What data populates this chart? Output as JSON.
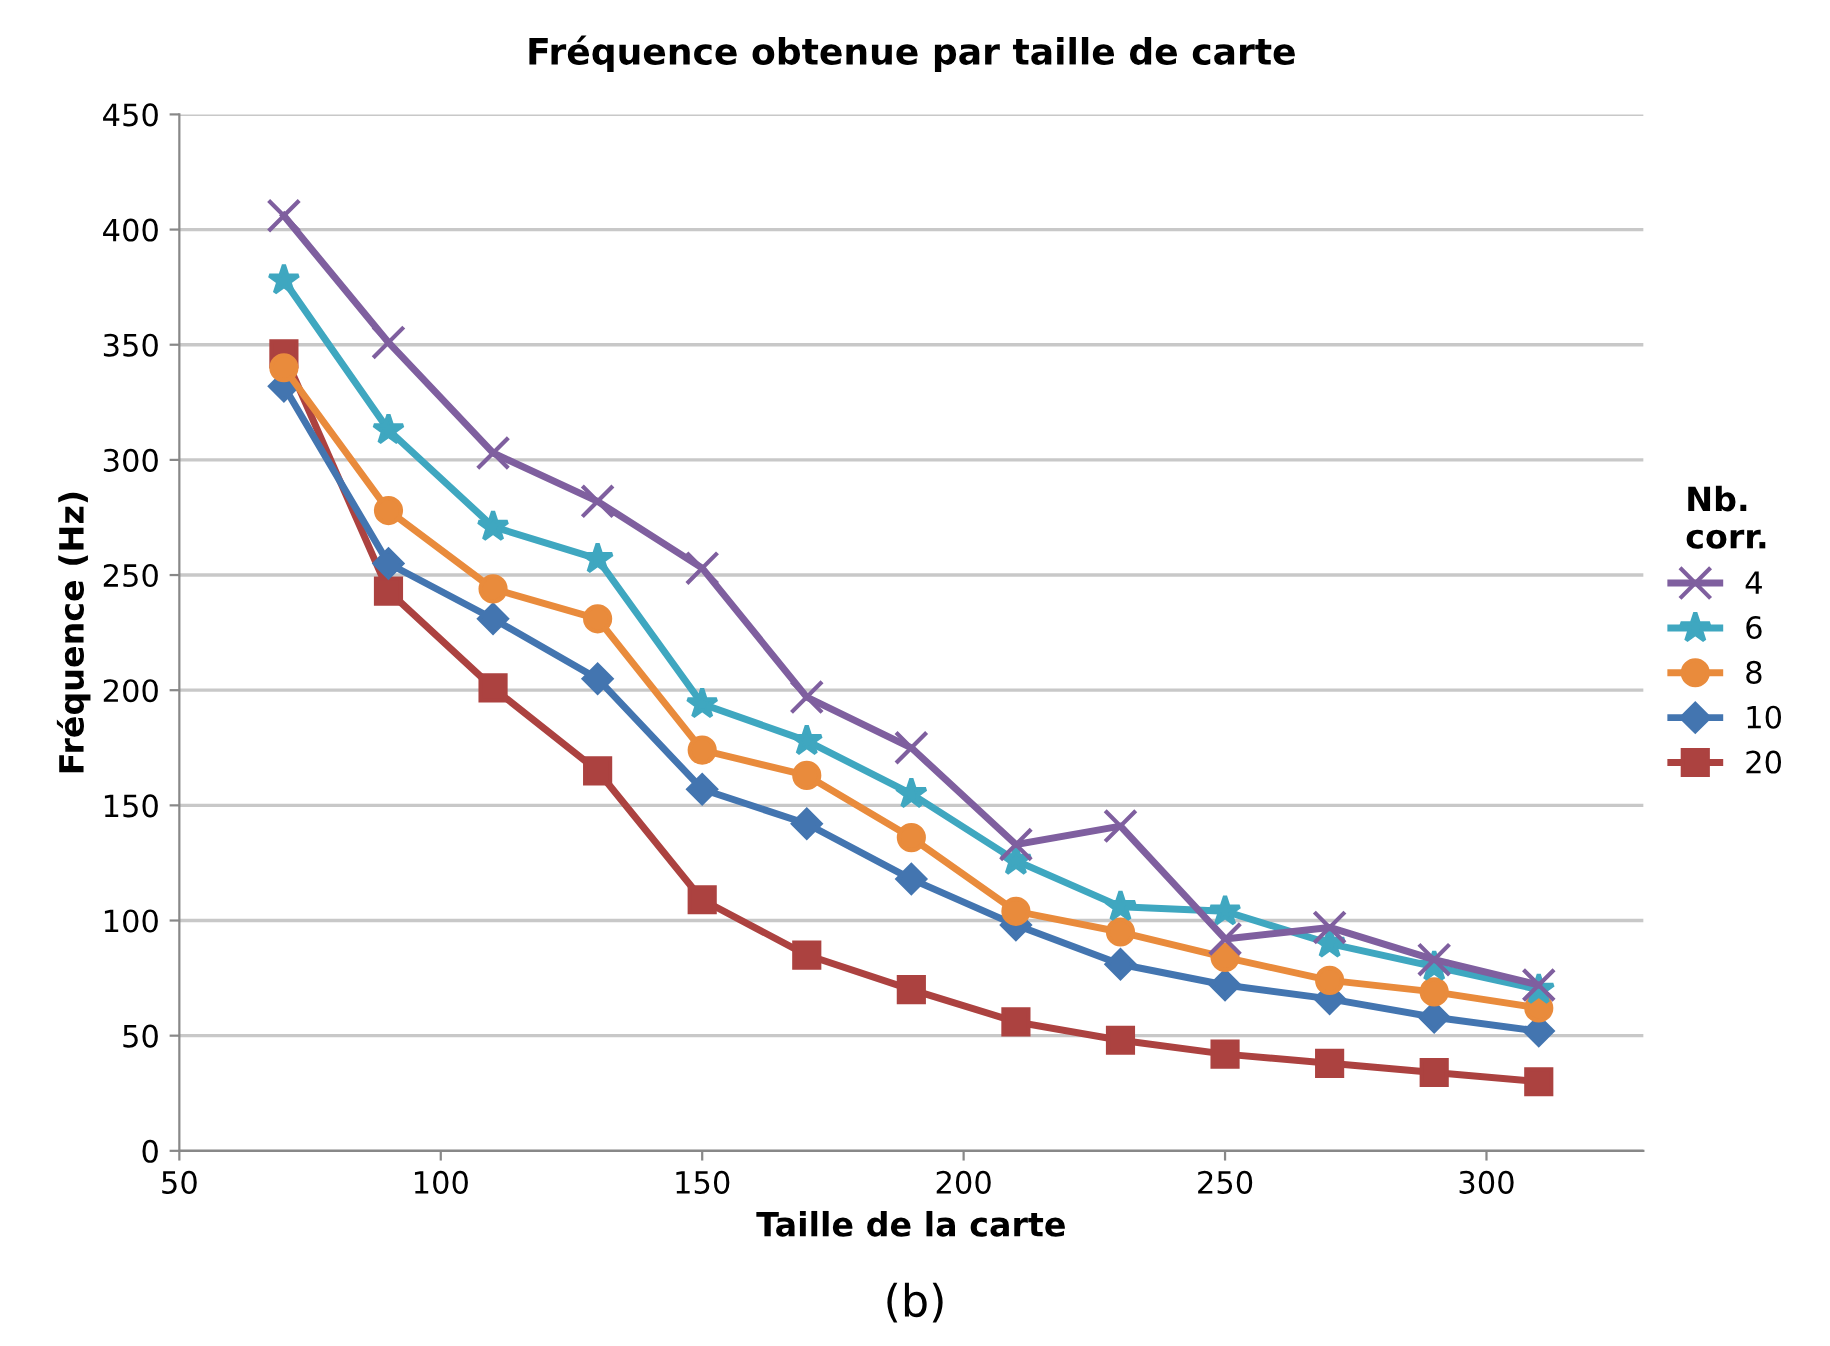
{
  "chart_data": {
    "type": "line",
    "title": "Fréquence obtenue par taille de carte",
    "xlabel": "Taille de la carte",
    "ylabel": "Fréquence (Hz)",
    "legend_title": "Nb.\ncorr.",
    "x": [
      70,
      90,
      110,
      130,
      150,
      170,
      190,
      210,
      230,
      250,
      270,
      290,
      310
    ],
    "series": [
      {
        "name": "4",
        "color": "#7f5f9f",
        "marker": "cross",
        "values": [
          406,
          351,
          303,
          282,
          253,
          197,
          175,
          133,
          141,
          92,
          97,
          83,
          72
        ]
      },
      {
        "name": "6",
        "color": "#3fa7c0",
        "marker": "star",
        "values": [
          378,
          313,
          271,
          257,
          194,
          178,
          155,
          126,
          106,
          104,
          90,
          80,
          70
        ]
      },
      {
        "name": "8",
        "color": "#e98b3c",
        "marker": "circle",
        "values": [
          340,
          278,
          244,
          231,
          174,
          163,
          136,
          104,
          95,
          84,
          74,
          69,
          62
        ]
      },
      {
        "name": "10",
        "color": "#4375b0",
        "marker": "diamond",
        "values": [
          332,
          255,
          231,
          205,
          157,
          142,
          118,
          98,
          81,
          72,
          66,
          58,
          52
        ]
      },
      {
        "name": "20",
        "color": "#ac4240",
        "marker": "square",
        "values": [
          346,
          243,
          201,
          165,
          109,
          85,
          70,
          56,
          48,
          42,
          38,
          34,
          30
        ]
      }
    ],
    "xlim": [
      50,
      330
    ],
    "xticks": [
      50,
      100,
      150,
      200,
      250,
      300
    ],
    "ylim": [
      0,
      450
    ],
    "yticks": [
      0,
      50,
      100,
      150,
      200,
      250,
      300,
      350,
      400,
      450
    ],
    "grid": "y",
    "legend": "right",
    "line_style": "solid",
    "annotations": [
      "(b)"
    ]
  }
}
